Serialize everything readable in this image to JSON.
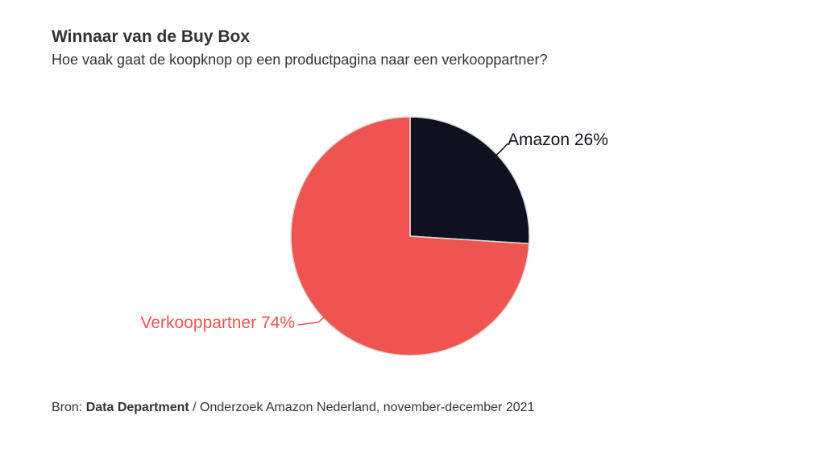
{
  "header": {
    "title": "Winnaar van de Buy Box",
    "subtitle": "Hoe vaak gaat de koopknop op een productpagina naar een verkooppartner?"
  },
  "chart_data": {
    "type": "pie",
    "slices": [
      {
        "label": "Amazon",
        "value": 26,
        "value_label": "26%",
        "color": "#0f111e"
      },
      {
        "label": "Verkooppartner",
        "value": 74,
        "value_label": "74%",
        "color": "#ee5550"
      }
    ],
    "title": "Winnaar van de Buy Box",
    "subtitle": "Hoe vaak gaat de koopknop op een productpagina naar een verkooppartner?",
    "unit": "%",
    "start": "12 o'clock",
    "direction": "clockwise"
  },
  "source": {
    "prefix": "Bron: ",
    "name": "Data Department",
    "rest": " / Onderzoek Amazon Nederland, november-december 2021"
  }
}
